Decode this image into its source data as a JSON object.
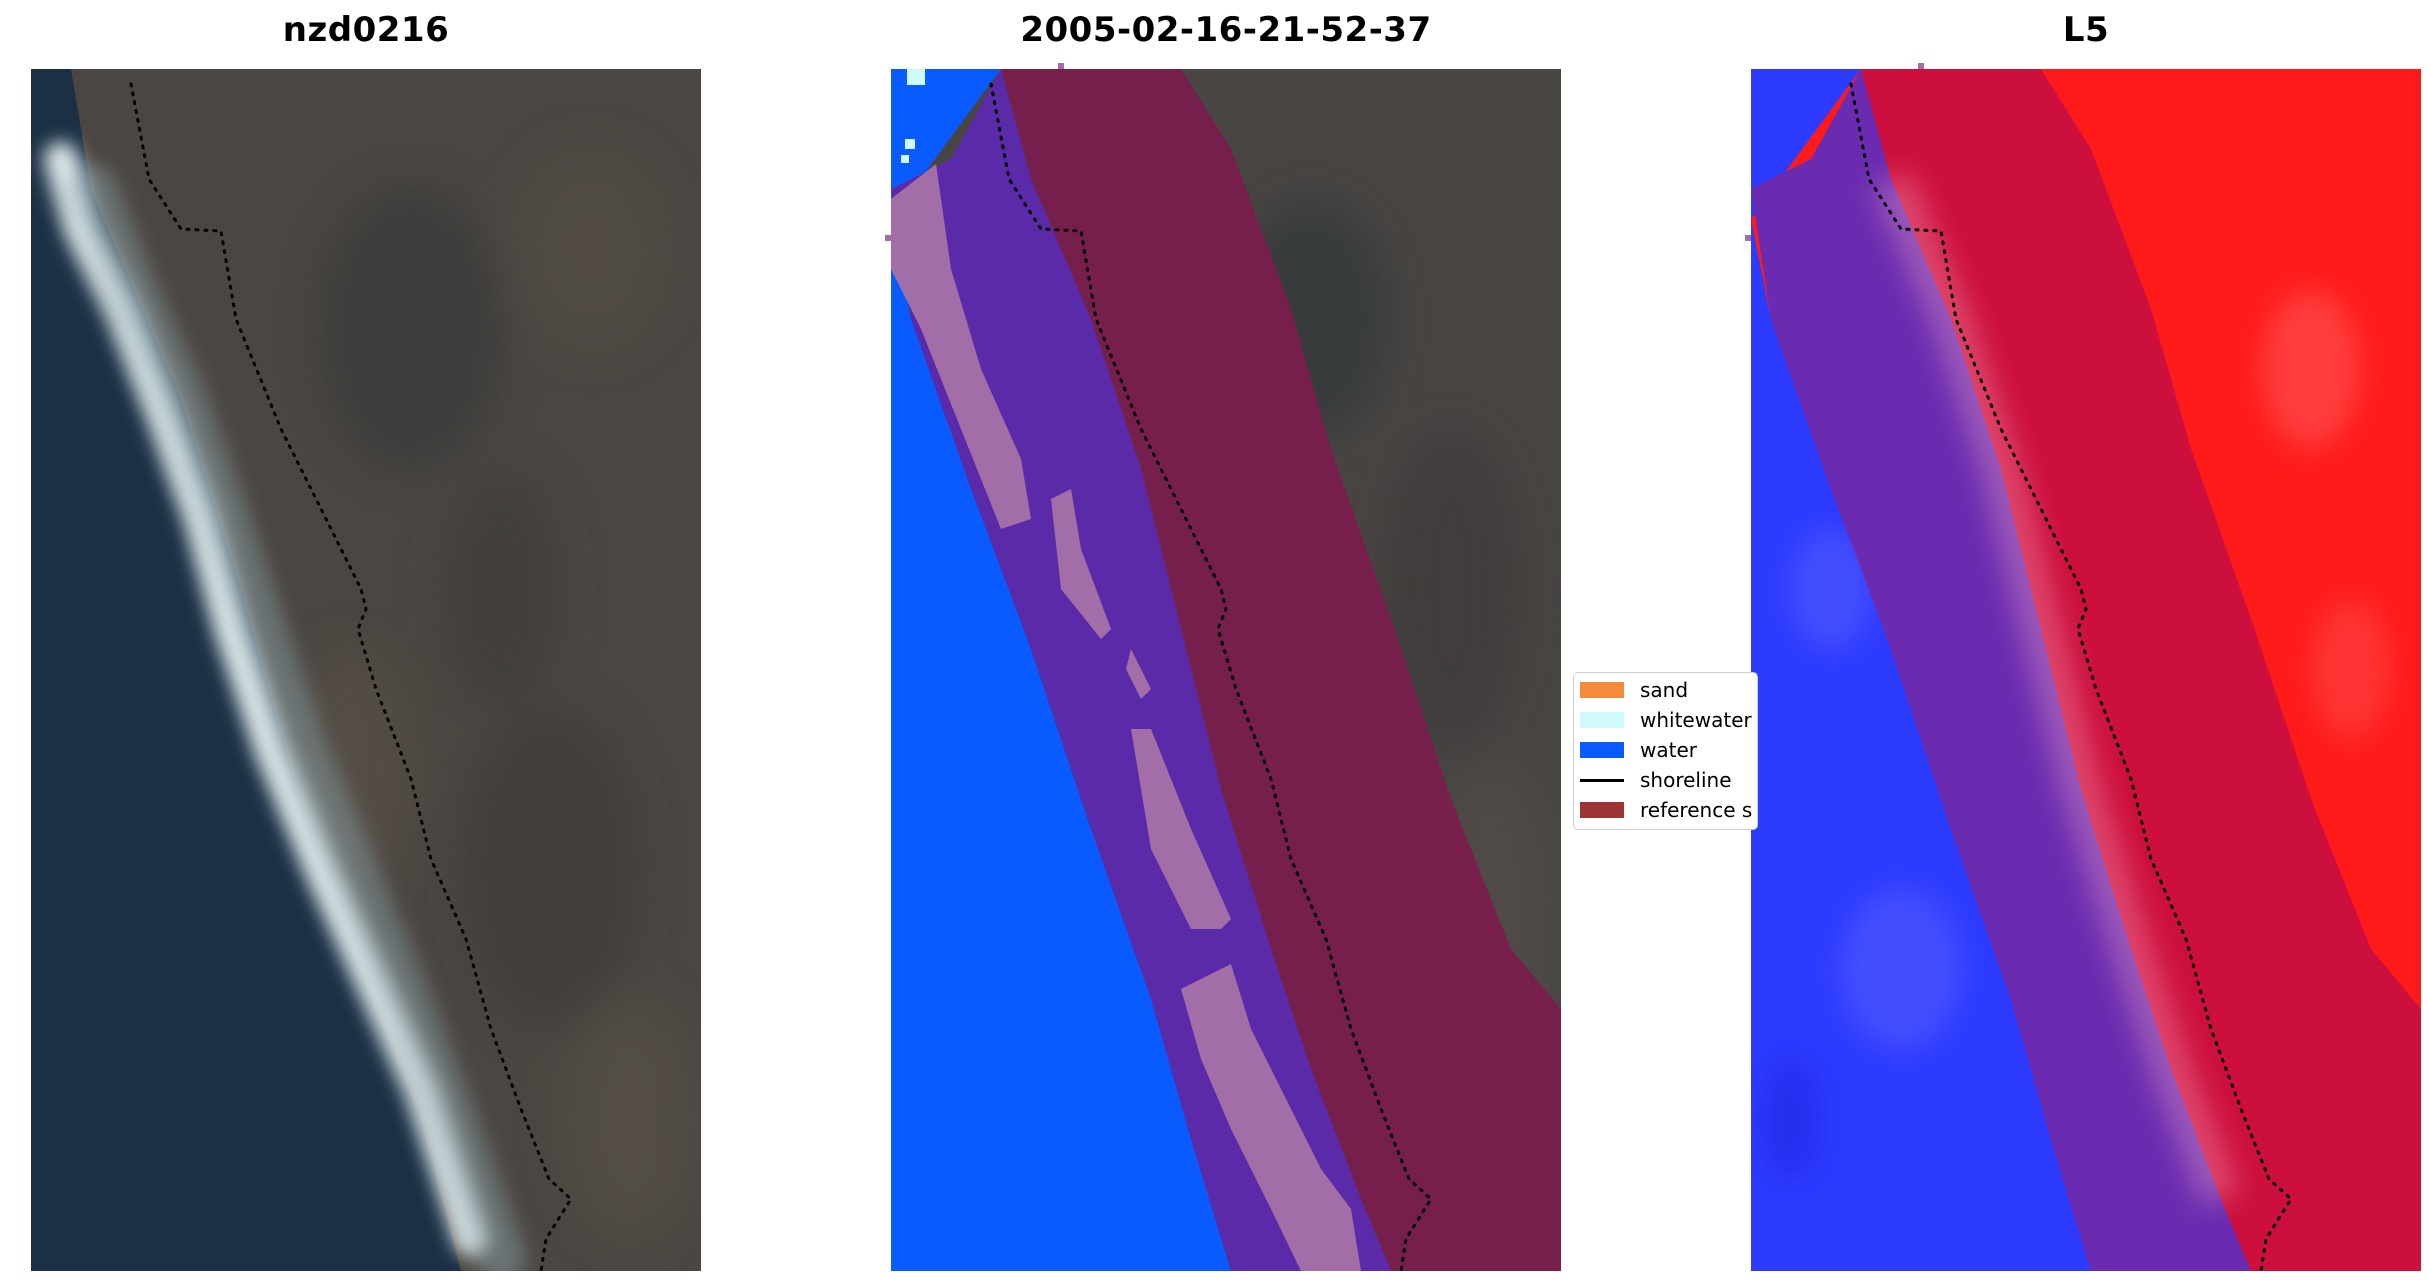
{
  "panels": [
    {
      "title": "nzd0216"
    },
    {
      "title": "2005-02-16-21-52-37"
    },
    {
      "title": "L5"
    }
  ],
  "legend": {
    "items": [
      {
        "label": "sand",
        "color": "#f58a3d",
        "kind": "patch"
      },
      {
        "label": "whitewater",
        "color": "#cdfbfb",
        "kind": "patch"
      },
      {
        "label": "water",
        "color": "#0a5bff",
        "kind": "patch"
      },
      {
        "label": "shoreline",
        "color": "#000000",
        "kind": "line"
      },
      {
        "label": "reference s",
        "color": "#9c3535",
        "kind": "patch"
      }
    ]
  },
  "colors": {
    "ocean_rgb": "#1d3246",
    "land_rgb": "#4a4540",
    "surf": "#dfe8ea",
    "class_water": "#0a5bff",
    "class_purple": "#5a2aa8",
    "class_pink": "#a36ea8",
    "class_buffer": "#7a1d4d",
    "index_land": "#ff1a1a",
    "index_water": "#2d3bff",
    "shoreline": "#000000"
  }
}
